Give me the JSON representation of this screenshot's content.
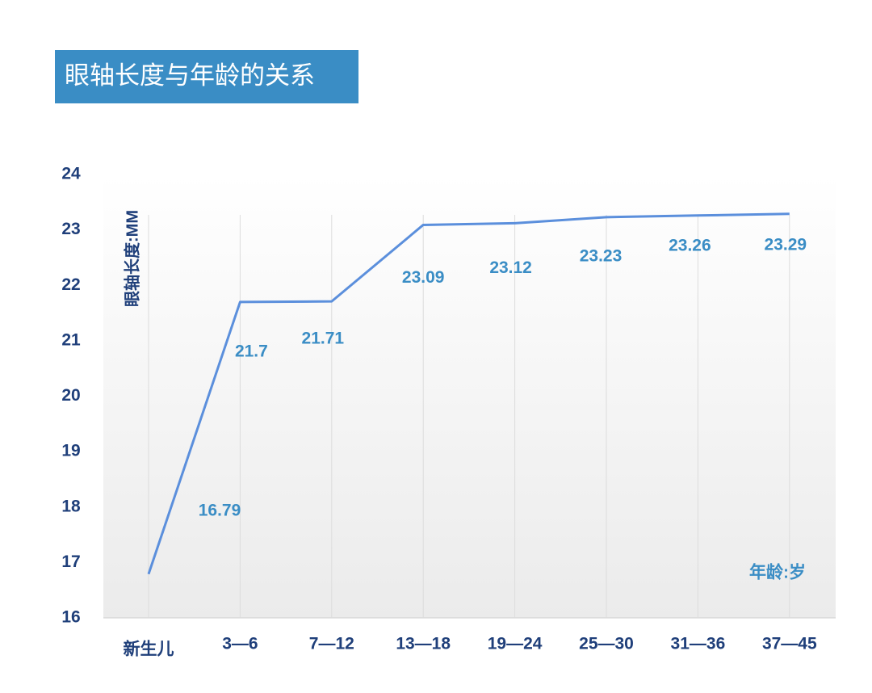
{
  "chart_data": {
    "type": "line",
    "title": "眼轴长度与年龄的关系",
    "y_label": "眼轴长度:MM",
    "x_label": "年龄:岁",
    "categories": [
      "新生儿",
      "3—6",
      "7—12",
      "13—18",
      "19—24",
      "25—30",
      "31—36",
      "37—45"
    ],
    "series": [
      {
        "name": "眼轴长度",
        "color": "#5b8fdc",
        "values": [
          16.79,
          21.7,
          21.71,
          23.09,
          23.12,
          23.23,
          23.26,
          23.29
        ]
      }
    ],
    "ylim": [
      16,
      24
    ],
    "yticks": [
      16,
      17,
      18,
      19,
      20,
      21,
      22,
      23,
      24
    ],
    "grid": true
  }
}
